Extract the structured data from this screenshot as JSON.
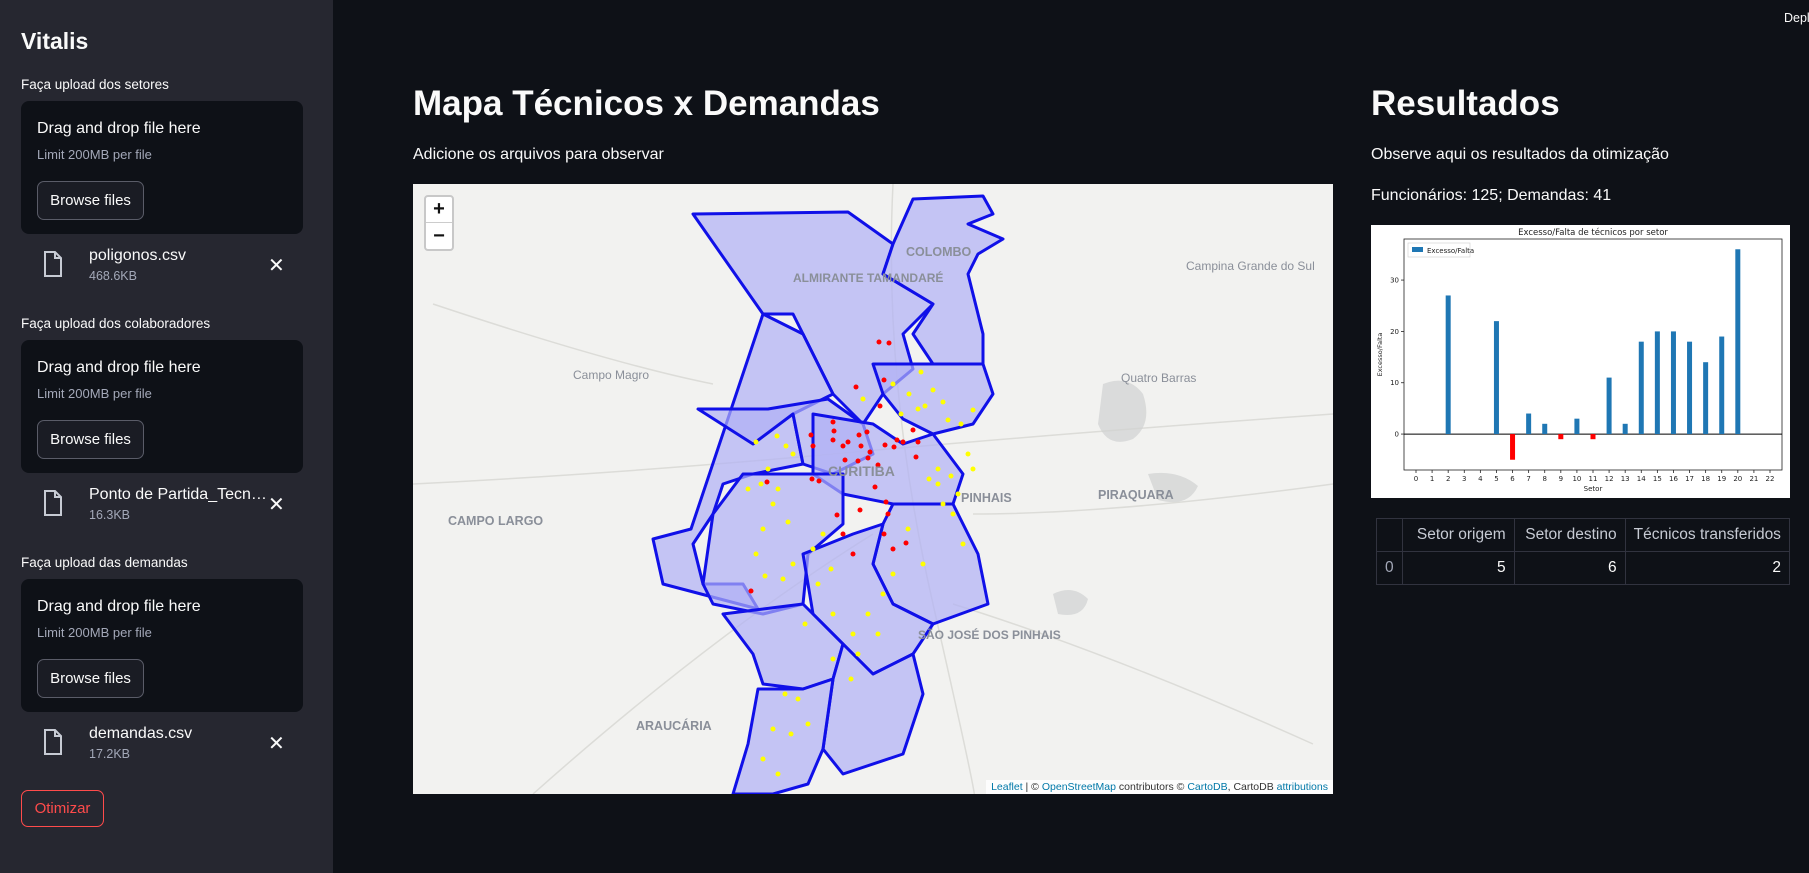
{
  "sidebar": {
    "app_title": "Vitalis",
    "uploads": [
      {
        "label": "Faça upload dos setores",
        "drop_title": "Drag and drop file here",
        "limit": "Limit 200MB per file",
        "browse": "Browse files",
        "file_name": "poligonos.csv",
        "file_size": "468.6KB"
      },
      {
        "label": "Faça upload dos colaboradores",
        "drop_title": "Drag and drop file here",
        "limit": "Limit 200MB per file",
        "browse": "Browse files",
        "file_name": "Ponto de Partida_Tecnicos.csv",
        "file_size": "16.3KB"
      },
      {
        "label": "Faça upload das demandas",
        "drop_title": "Drag and drop file here",
        "limit": "Limit 200MB per file",
        "browse": "Browse files",
        "file_name": "demandas.csv",
        "file_size": "17.2KB"
      }
    ],
    "optimize_label": "Otimizar"
  },
  "top_right": "Deploy",
  "map_section": {
    "title": "Mapa Técnicos x Demandas",
    "caption": "Adicione os arquivos para observar",
    "zoom_in": "+",
    "zoom_out": "−",
    "place_labels": [
      "COLOMBO",
      "ALMIRANTE TAMANDARÉ",
      "Campina Grande do Sul",
      "Campo Magro",
      "Quatro Barras",
      "CURITIBA",
      "PINHAIS",
      "PIRAQUARA",
      "CAMPO LARGO",
      "SÃO JOSÉ DOS PINHAIS",
      "ARAUCÁRIA"
    ],
    "attribution": {
      "leaflet": "Leaflet",
      "sep": " | © ",
      "osm": "OpenStreetMap",
      "contrib": " contributors © ",
      "carto": "CartoDB",
      "mid": ", CartoDB ",
      "attr": "attributions"
    },
    "colors": {
      "polygon_fill": "#b0b0f5",
      "polygon_stroke": "#1010e8",
      "technician": "#ffff00",
      "demand": "#ff0000"
    }
  },
  "results": {
    "title": "Resultados",
    "caption": "Observe aqui os resultados da otimização",
    "summary": "Funcionários: 125; Demandas: 41",
    "table": {
      "headers": [
        "",
        "Setor origem",
        "Setor destino",
        "Técnicos transferidos"
      ],
      "rows": [
        [
          "0",
          "5",
          "6",
          "2"
        ]
      ]
    }
  },
  "chart_data": {
    "type": "bar",
    "title": "Excesso/Falta de técnicos por setor",
    "xlabel": "Setor",
    "ylabel": "Excesso/Falta",
    "legend": "Excesso/Falta",
    "legend_position": "top-left",
    "categories": [
      "0",
      "1",
      "2",
      "3",
      "4",
      "5",
      "6",
      "7",
      "8",
      "9",
      "10",
      "11",
      "12",
      "13",
      "14",
      "15",
      "16",
      "17",
      "18",
      "19",
      "20",
      "21",
      "22"
    ],
    "values": [
      0,
      0,
      27,
      0,
      0,
      22,
      -5,
      4,
      2,
      -1,
      3,
      -1,
      11,
      2,
      18,
      20,
      20,
      18,
      14,
      19,
      36,
      0,
      0
    ],
    "yticks": [
      0,
      10,
      20,
      30
    ],
    "ylim": [
      -7,
      38
    ],
    "colors": {
      "positive": "#1f77b4",
      "negative": "#ff0000"
    }
  }
}
